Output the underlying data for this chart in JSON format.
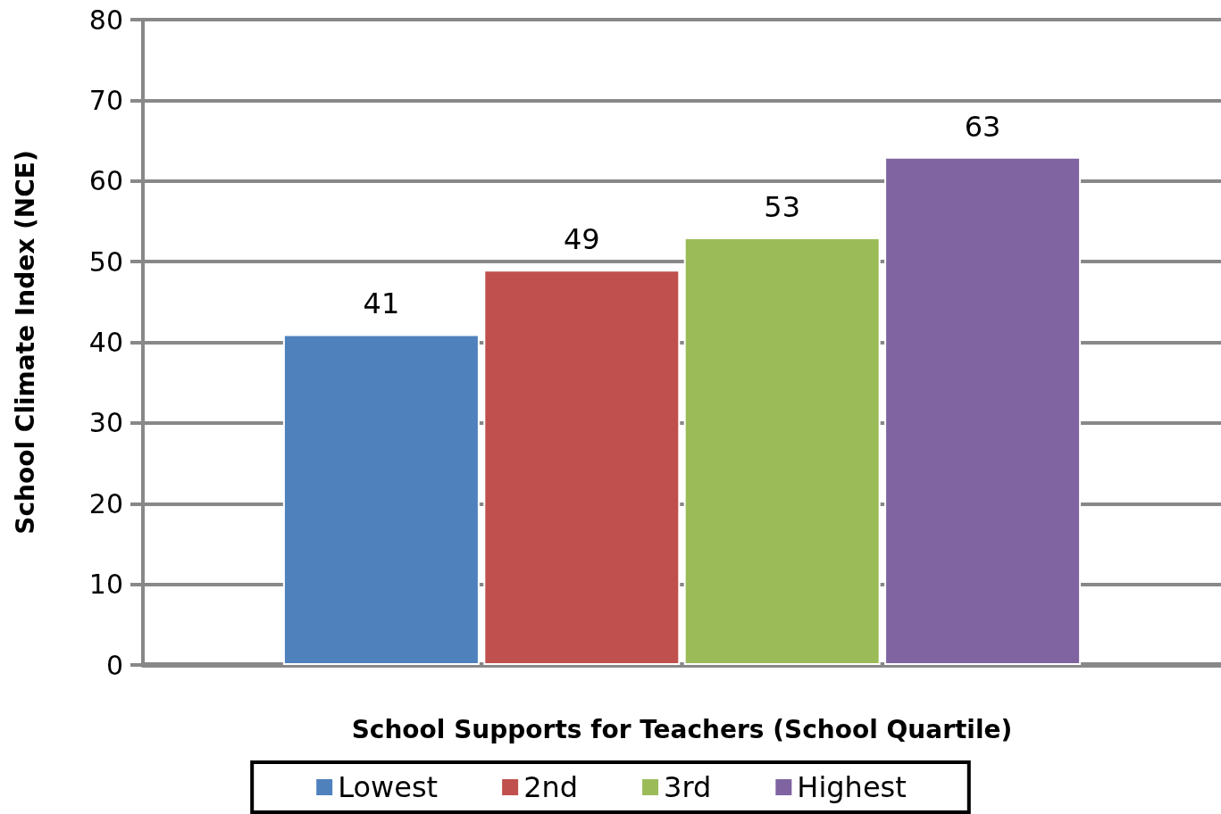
{
  "chart_data": {
    "type": "bar",
    "xlabel": "School Supports for Teachers (School Quartile)",
    "ylabel": "School Climate Index (NCE)",
    "categories": [
      null
    ],
    "series": [
      {
        "name": "Lowest",
        "color": "#4f81bd",
        "values": [
          41
        ]
      },
      {
        "name": "2nd",
        "color": "#c0504d",
        "values": [
          49
        ]
      },
      {
        "name": "3rd",
        "color": "#9bbb59",
        "values": [
          53
        ]
      },
      {
        "name": "Highest",
        "color": "#8064a2",
        "values": [
          63
        ]
      }
    ],
    "ylim": [
      0,
      80
    ],
    "yticks": [
      0,
      10,
      20,
      30,
      40,
      50,
      60,
      70,
      80
    ],
    "grid": "y",
    "legend": "bottom",
    "data_labels": true
  }
}
